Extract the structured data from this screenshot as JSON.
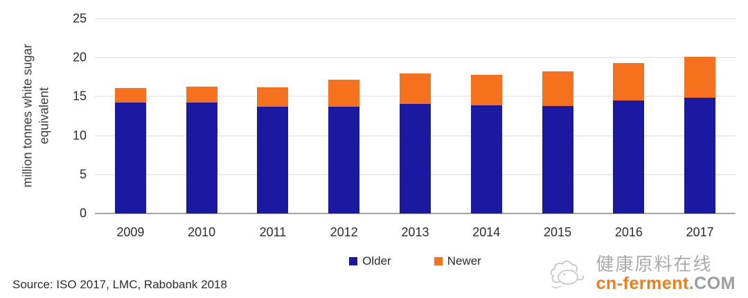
{
  "chart_data": {
    "type": "bar",
    "stacked": true,
    "categories": [
      "2009",
      "2010",
      "2011",
      "2012",
      "2013",
      "2014",
      "2015",
      "2016",
      "2017"
    ],
    "series": [
      {
        "name": "Older",
        "color": "#1b18a2",
        "values": [
          14.2,
          14.2,
          13.7,
          13.7,
          14.1,
          13.9,
          13.8,
          14.5,
          14.9
        ]
      },
      {
        "name": "Newer",
        "color": "#f5711d",
        "values": [
          1.9,
          2.1,
          2.5,
          3.5,
          3.9,
          3.9,
          4.4,
          4.8,
          5.2
        ]
      }
    ],
    "title": "",
    "xlabel": "",
    "ylabel_line1": "million tonnes white sugar",
    "ylabel_line2": "equivalent",
    "yticks": [
      0,
      5,
      10,
      15,
      20,
      25
    ],
    "ylim": [
      0,
      25
    ],
    "grid": true,
    "legend_position": "bottom-center"
  },
  "source_note": "Source: ISO 2017, LMC, Rabobank 2018",
  "watermark": {
    "site_name": "健康原料在线",
    "domain_orange": "cn-ferment",
    "domain_gray": ".COM"
  },
  "colors": {
    "older": "#1b18a2",
    "newer": "#f5711d",
    "gridline": "#d9d9d9",
    "axis_line": "#a3a3a3",
    "watermark_gray": "#aaaaaa",
    "watermark_orange": "#ef7d1a"
  }
}
